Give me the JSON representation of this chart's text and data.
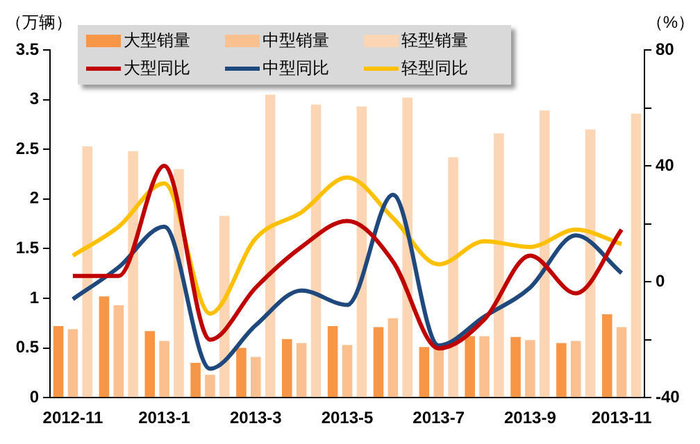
{
  "chart_data": {
    "type": "bar",
    "ylabel": "（万辆）",
    "y2label": "（%）",
    "categories": [
      "2012-11",
      null,
      "2013-1",
      null,
      "2013-3",
      null,
      "2013-5",
      null,
      "2013-7",
      null,
      "2013-9",
      null,
      "2013-11"
    ],
    "series": [
      {
        "name": "大型销量",
        "color": "#f79646",
        "values": [
          0.72,
          1.02,
          0.67,
          0.35,
          0.5,
          0.59,
          0.72,
          0.71,
          0.51,
          0.62,
          0.61,
          0.55,
          0.84
        ]
      },
      {
        "name": "中型销量",
        "color": "#fac090",
        "values": [
          0.69,
          0.93,
          0.57,
          0.23,
          0.41,
          0.55,
          0.53,
          0.8,
          0.5,
          0.62,
          0.58,
          0.57,
          0.71
        ]
      },
      {
        "name": "轻型销量",
        "color": "#fcd5b5",
        "values": [
          2.53,
          2.48,
          2.3,
          1.83,
          3.05,
          2.95,
          2.93,
          3.02,
          2.42,
          2.66,
          2.89,
          2.7,
          2.86
        ]
      },
      {
        "name": "大型同比",
        "type": "line",
        "axis": "y2",
        "color": "#c00000",
        "values": [
          2,
          2,
          40,
          -20,
          -2,
          12,
          21,
          7,
          -23,
          -13,
          9,
          -4,
          18
        ]
      },
      {
        "name": "中型同比",
        "type": "line",
        "axis": "y2",
        "color": "#1f497d",
        "values": [
          -6,
          5,
          19,
          -30,
          -15,
          -3,
          -8,
          30,
          -22,
          -12,
          -2,
          16,
          3
        ]
      },
      {
        "name": "轻型同比",
        "type": "line",
        "axis": "y2",
        "color": "#ffc000",
        "values": [
          9,
          19,
          34,
          -11,
          15,
          24,
          36,
          22,
          6,
          14,
          12,
          18,
          13
        ]
      }
    ],
    "ylim": [
      0,
      3.5
    ],
    "yticks": [
      0,
      0.5,
      1,
      1.5,
      2,
      2.5,
      3,
      3.5
    ],
    "y2lim": [
      -40,
      80
    ],
    "y2ticks": [
      -40,
      {
        "value": -20,
        "label": null
      },
      0,
      {
        "value": 20,
        "label": null
      },
      40,
      {
        "value": 60,
        "label": null
      },
      80
    ],
    "grid": false,
    "legend": "top",
    "marker": "none"
  }
}
